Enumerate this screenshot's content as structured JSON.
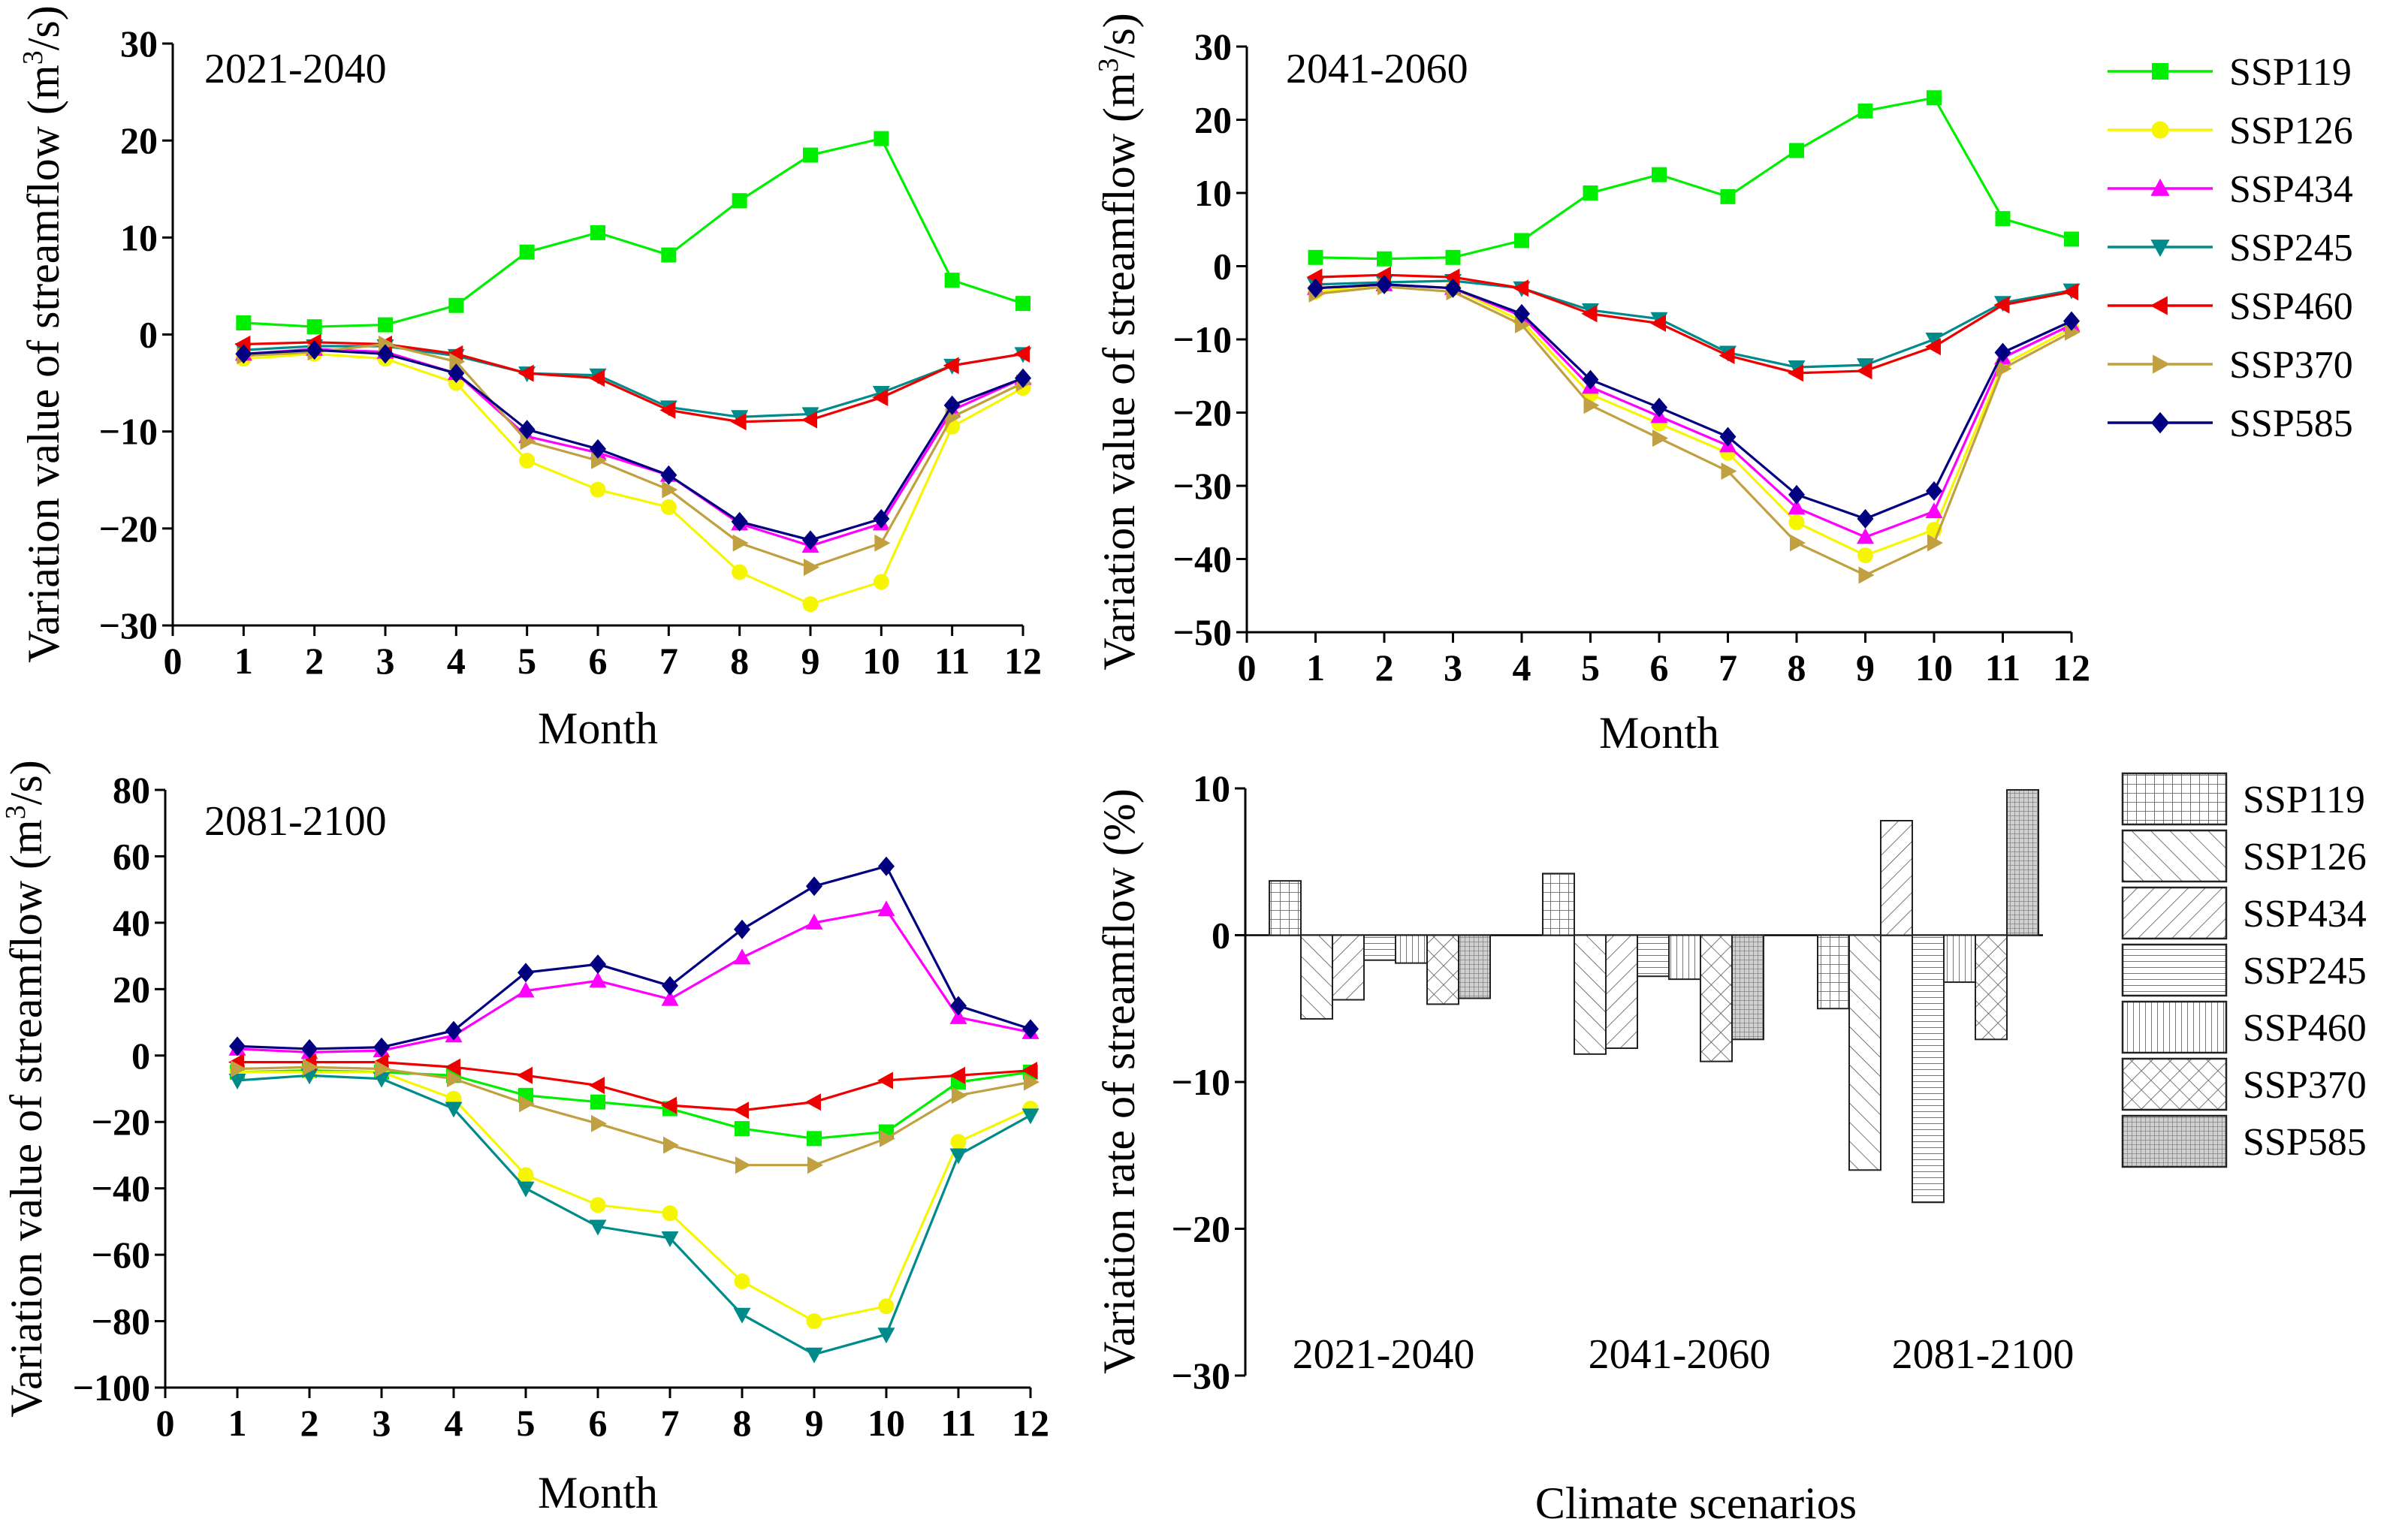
{
  "figure": {
    "line_ylabel": "Variation value of streamflow (m",
    "line_ylabel_sup": "3",
    "line_ylabel_end": "/s)",
    "line_xlabel": "Month",
    "bar_ylabel": "Variation rate of streamflow (%)",
    "bar_xlabel": "Climate scenarios"
  },
  "legend": {
    "lines": [
      {
        "name": "SSP119",
        "color": "#00ee00",
        "marker": "square"
      },
      {
        "name": "SSP126",
        "color": "#f6f600",
        "marker": "circle"
      },
      {
        "name": "SSP434",
        "color": "#ff00ff",
        "marker": "triangle-up"
      },
      {
        "name": "SSP245",
        "color": "#008b8b",
        "marker": "triangle-down"
      },
      {
        "name": "SSP460",
        "color": "#ee0000",
        "marker": "triangle-left"
      },
      {
        "name": "SSP370",
        "color": "#c0a040",
        "marker": "triangle-right"
      },
      {
        "name": "SSP585",
        "color": "#000080",
        "marker": "diamond"
      }
    ],
    "bars": [
      {
        "name": "SSP119",
        "pattern": "grid"
      },
      {
        "name": "SSP126",
        "pattern": "diag-wide"
      },
      {
        "name": "SSP434",
        "pattern": "backdiag"
      },
      {
        "name": "SSP245",
        "pattern": "horizontal"
      },
      {
        "name": "SSP460",
        "pattern": "vertical"
      },
      {
        "name": "SSP370",
        "pattern": "crosshatch"
      },
      {
        "name": "SSP585",
        "pattern": "dense"
      }
    ]
  },
  "chart_data": [
    {
      "type": "line",
      "period": "2021-2040",
      "xlabel": "Month",
      "ylabel": "Variation value of streamflow (m3/s)",
      "xlim": [
        0,
        12
      ],
      "xticks": [
        "0",
        "1",
        "2",
        "3",
        "4",
        "5",
        "6",
        "7",
        "8",
        "9",
        "10",
        "11",
        "12"
      ],
      "ylim": [
        -30,
        30
      ],
      "yticks": [
        "30",
        "20",
        "10",
        "0",
        "−10",
        "−20",
        "−30"
      ],
      "ytick_values": [
        30,
        20,
        10,
        0,
        -10,
        -20,
        -30
      ],
      "x": [
        1,
        2,
        3,
        4,
        5,
        6,
        7,
        8,
        9,
        10,
        11,
        12
      ],
      "series": [
        {
          "name": "SSP119",
          "values": [
            1.2,
            0.8,
            1.0,
            3.0,
            8.5,
            10.5,
            8.2,
            13.8,
            18.5,
            20.2,
            5.6,
            3.2
          ]
        },
        {
          "name": "SSP126",
          "values": [
            -2.5,
            -2.0,
            -2.5,
            -5.0,
            -13.0,
            -16.0,
            -17.8,
            -24.5,
            -27.8,
            -25.5,
            -9.5,
            -5.5
          ]
        },
        {
          "name": "SSP434",
          "values": [
            -2.0,
            -1.5,
            -1.8,
            -4.0,
            -10.5,
            -12.2,
            -14.5,
            -19.5,
            -21.8,
            -19.5,
            -7.8,
            -4.5
          ]
        },
        {
          "name": "SSP245",
          "values": [
            -1.6,
            -1.2,
            -1.2,
            -2.2,
            -4.0,
            -4.2,
            -7.5,
            -8.5,
            -8.2,
            -6.0,
            -3.2,
            -2.0
          ]
        },
        {
          "name": "SSP460",
          "values": [
            -1.0,
            -0.8,
            -1.0,
            -2.0,
            -4.0,
            -4.5,
            -7.8,
            -9.0,
            -8.8,
            -6.5,
            -3.2,
            -2.0
          ]
        },
        {
          "name": "SSP370",
          "values": [
            -2.2,
            -1.8,
            -1.0,
            -2.8,
            -11.0,
            -13.0,
            -16.0,
            -21.5,
            -24.0,
            -21.5,
            -8.5,
            -5.0
          ]
        },
        {
          "name": "SSP585",
          "values": [
            -2.0,
            -1.6,
            -2.0,
            -4.0,
            -9.8,
            -11.8,
            -14.5,
            -19.3,
            -21.2,
            -19.0,
            -7.3,
            -4.5
          ]
        }
      ]
    },
    {
      "type": "line",
      "period": "2041-2060",
      "xlabel": "Month",
      "ylabel": "Variation value of streamflow (m3/s)",
      "xlim": [
        0,
        12
      ],
      "xticks": [
        "0",
        "1",
        "2",
        "3",
        "4",
        "5",
        "6",
        "7",
        "8",
        "9",
        "10",
        "11",
        "12"
      ],
      "ylim": [
        -50,
        30
      ],
      "yticks": [
        "30",
        "20",
        "10",
        "0",
        "−10",
        "−20",
        "−30",
        "−40",
        "−50"
      ],
      "ytick_values": [
        30,
        20,
        10,
        0,
        -10,
        -20,
        -30,
        -40,
        -50
      ],
      "x": [
        1,
        2,
        3,
        4,
        5,
        6,
        7,
        8,
        9,
        10,
        11,
        12
      ],
      "series": [
        {
          "name": "SSP119",
          "values": [
            1.2,
            1.0,
            1.2,
            3.5,
            10.0,
            12.5,
            9.5,
            15.8,
            21.2,
            23.0,
            6.5,
            3.7
          ]
        },
        {
          "name": "SSP126",
          "values": [
            -3.5,
            -2.5,
            -3.0,
            -7.5,
            -17.5,
            -21.5,
            -25.5,
            -35.0,
            -39.5,
            -36.0,
            -13.5,
            -8.5
          ]
        },
        {
          "name": "SSP434",
          "values": [
            -3.0,
            -2.5,
            -3.0,
            -6.8,
            -16.5,
            -20.5,
            -24.5,
            -33.0,
            -37.0,
            -33.5,
            -12.5,
            -8.0
          ]
        },
        {
          "name": "SSP245",
          "values": [
            -2.5,
            -2.2,
            -2.0,
            -3.0,
            -6.0,
            -7.2,
            -11.8,
            -13.8,
            -13.5,
            -10.0,
            -5.0,
            -3.3
          ]
        },
        {
          "name": "SSP460",
          "values": [
            -1.5,
            -1.2,
            -1.5,
            -3.0,
            -6.5,
            -7.8,
            -12.2,
            -14.6,
            -14.3,
            -11.0,
            -5.3,
            -3.5
          ]
        },
        {
          "name": "SSP370",
          "values": [
            -3.8,
            -2.8,
            -3.5,
            -8.0,
            -19.0,
            -23.5,
            -28.0,
            -37.8,
            -42.2,
            -37.8,
            -14.0,
            -9.0
          ]
        },
        {
          "name": "SSP585",
          "values": [
            -3.0,
            -2.5,
            -3.0,
            -6.5,
            -15.5,
            -19.3,
            -23.3,
            -31.2,
            -34.5,
            -30.7,
            -11.8,
            -7.5
          ]
        }
      ]
    },
    {
      "type": "line",
      "period": "2081-2100",
      "xlabel": "Month",
      "ylabel": "Variation value of streamflow (m3/s)",
      "xlim": [
        0,
        12
      ],
      "xticks": [
        "0",
        "1",
        "2",
        "3",
        "4",
        "5",
        "6",
        "7",
        "8",
        "9",
        "10",
        "11",
        "12"
      ],
      "ylim": [
        -100,
        80
      ],
      "yticks": [
        "80",
        "60",
        "40",
        "20",
        "0",
        "−20",
        "−40",
        "−60",
        "−80",
        "−100"
      ],
      "ytick_values": [
        80,
        60,
        40,
        20,
        0,
        -20,
        -40,
        -60,
        -80,
        -100
      ],
      "x": [
        1,
        2,
        3,
        4,
        5,
        6,
        7,
        8,
        9,
        10,
        11,
        12
      ],
      "series": [
        {
          "name": "SSP119",
          "values": [
            -5.0,
            -4.5,
            -5.0,
            -6.0,
            -12.0,
            -14.0,
            -16.0,
            -22.0,
            -25.0,
            -23.0,
            -8.0,
            -5.0
          ]
        },
        {
          "name": "SSP126",
          "values": [
            -5.0,
            -5.0,
            -5.0,
            -13.0,
            -36.0,
            -45.0,
            -47.5,
            -68.0,
            -80.0,
            -75.5,
            -26.0,
            -16.0
          ]
        },
        {
          "name": "SSP434",
          "values": [
            2.0,
            1.0,
            1.5,
            6.0,
            19.5,
            22.5,
            17.0,
            29.5,
            40.0,
            44.0,
            11.5,
            7.0
          ]
        },
        {
          "name": "SSP245",
          "values": [
            -7.5,
            -6.0,
            -7.0,
            -16.0,
            -40.0,
            -51.5,
            -55.0,
            -78.0,
            -90.0,
            -84.0,
            -30.0,
            -18.0
          ]
        },
        {
          "name": "SSP460",
          "values": [
            -2.0,
            -2.0,
            -2.0,
            -3.5,
            -6.0,
            -9.0,
            -15.0,
            -16.5,
            -14.0,
            -7.5,
            -6.0,
            -4.5
          ]
        },
        {
          "name": "SSP370",
          "values": [
            -4.0,
            -3.5,
            -4.0,
            -7.0,
            -14.5,
            -20.5,
            -27.0,
            -33.0,
            -33.0,
            -25.0,
            -12.0,
            -8.0
          ]
        },
        {
          "name": "SSP585",
          "values": [
            2.8,
            2.0,
            2.5,
            7.5,
            25.0,
            27.5,
            21.0,
            38.0,
            51.0,
            57.0,
            15.0,
            8.0
          ]
        }
      ]
    },
    {
      "type": "bar",
      "xlabel": "Climate scenarios",
      "ylabel": "Variation rate of streamflow (%)",
      "ylim": [
        -30,
        10
      ],
      "yticks": [
        "10",
        "0",
        "−10",
        "−20",
        "−30"
      ],
      "ytick_values": [
        10,
        0,
        -10,
        -20,
        -30
      ],
      "categories": [
        "2021-2040",
        "2041-2060",
        "2081-2100"
      ],
      "series": [
        {
          "name": "SSP119",
          "values": [
            3.7,
            4.2,
            -5.0
          ]
        },
        {
          "name": "SSP126",
          "values": [
            -5.7,
            -8.1,
            -16.0
          ]
        },
        {
          "name": "SSP434",
          "values": [
            -4.4,
            -7.7,
            7.8
          ]
        },
        {
          "name": "SSP245",
          "values": [
            -1.7,
            -2.8,
            -18.2
          ]
        },
        {
          "name": "SSP460",
          "values": [
            -1.9,
            -3.0,
            -3.2
          ]
        },
        {
          "name": "SSP370",
          "values": [
            -4.7,
            -8.6,
            -7.1
          ]
        },
        {
          "name": "SSP585",
          "values": [
            -4.3,
            -7.1,
            9.9
          ]
        }
      ]
    }
  ]
}
